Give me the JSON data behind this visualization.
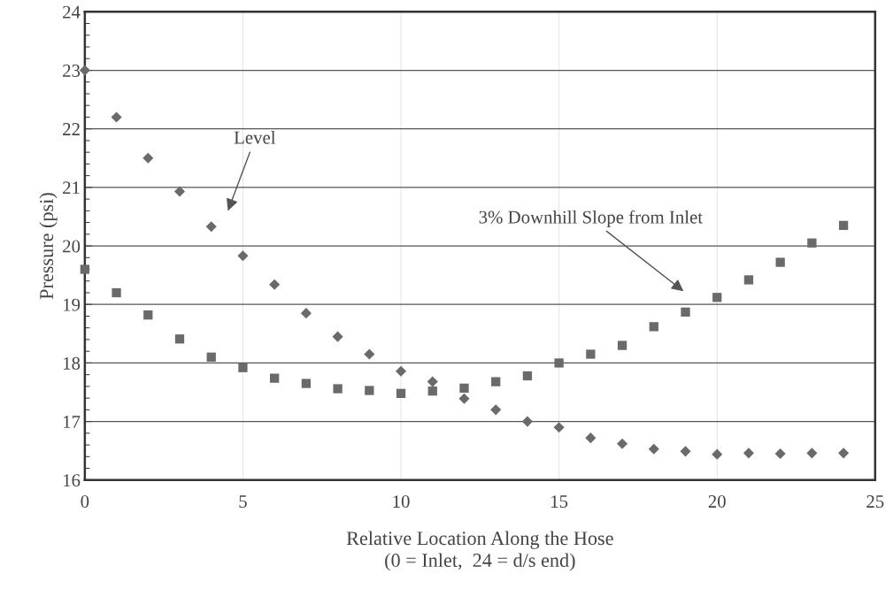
{
  "chart_data": {
    "type": "scatter",
    "xlabel": "Relative Location Along the Hose\n(0 = Inlet,  24 = d/s end)",
    "ylabel": "Pressure (psi)",
    "x": [
      0,
      1,
      2,
      3,
      4,
      5,
      6,
      7,
      8,
      9,
      10,
      11,
      12,
      13,
      14,
      15,
      16,
      17,
      18,
      19,
      20,
      21,
      22,
      23,
      24
    ],
    "series": [
      {
        "color": "#6a6a6a",
        "marker": "diamond",
        "values": [
          23.0,
          22.2,
          21.5,
          20.93,
          20.33,
          19.83,
          19.34,
          18.85,
          18.45,
          18.15,
          17.86,
          17.68,
          17.39,
          17.2,
          17.0,
          16.9,
          16.72,
          16.62,
          16.53,
          16.49,
          16.44,
          16.46,
          16.45,
          16.46,
          16.46
        ]
      },
      {
        "color": "#6a6a6a",
        "marker": "square",
        "values": [
          19.6,
          19.2,
          18.82,
          18.41,
          18.1,
          17.92,
          17.74,
          17.65,
          17.56,
          17.53,
          17.48,
          17.52,
          17.57,
          17.68,
          17.78,
          18.0,
          18.15,
          18.3,
          18.62,
          18.87,
          19.12,
          19.42,
          19.72,
          20.05,
          20.35
        ]
      }
    ],
    "annotations": [
      "Level",
      "3% Downhill Slope from Inlet"
    ],
    "xlim": [
      0,
      25
    ],
    "xticks": [
      0,
      5,
      10,
      15,
      20,
      25
    ],
    "ylim": [
      16,
      24
    ],
    "yticks": [
      16,
      17,
      18,
      19,
      20,
      21,
      22,
      23,
      24
    ],
    "grid": true
  }
}
